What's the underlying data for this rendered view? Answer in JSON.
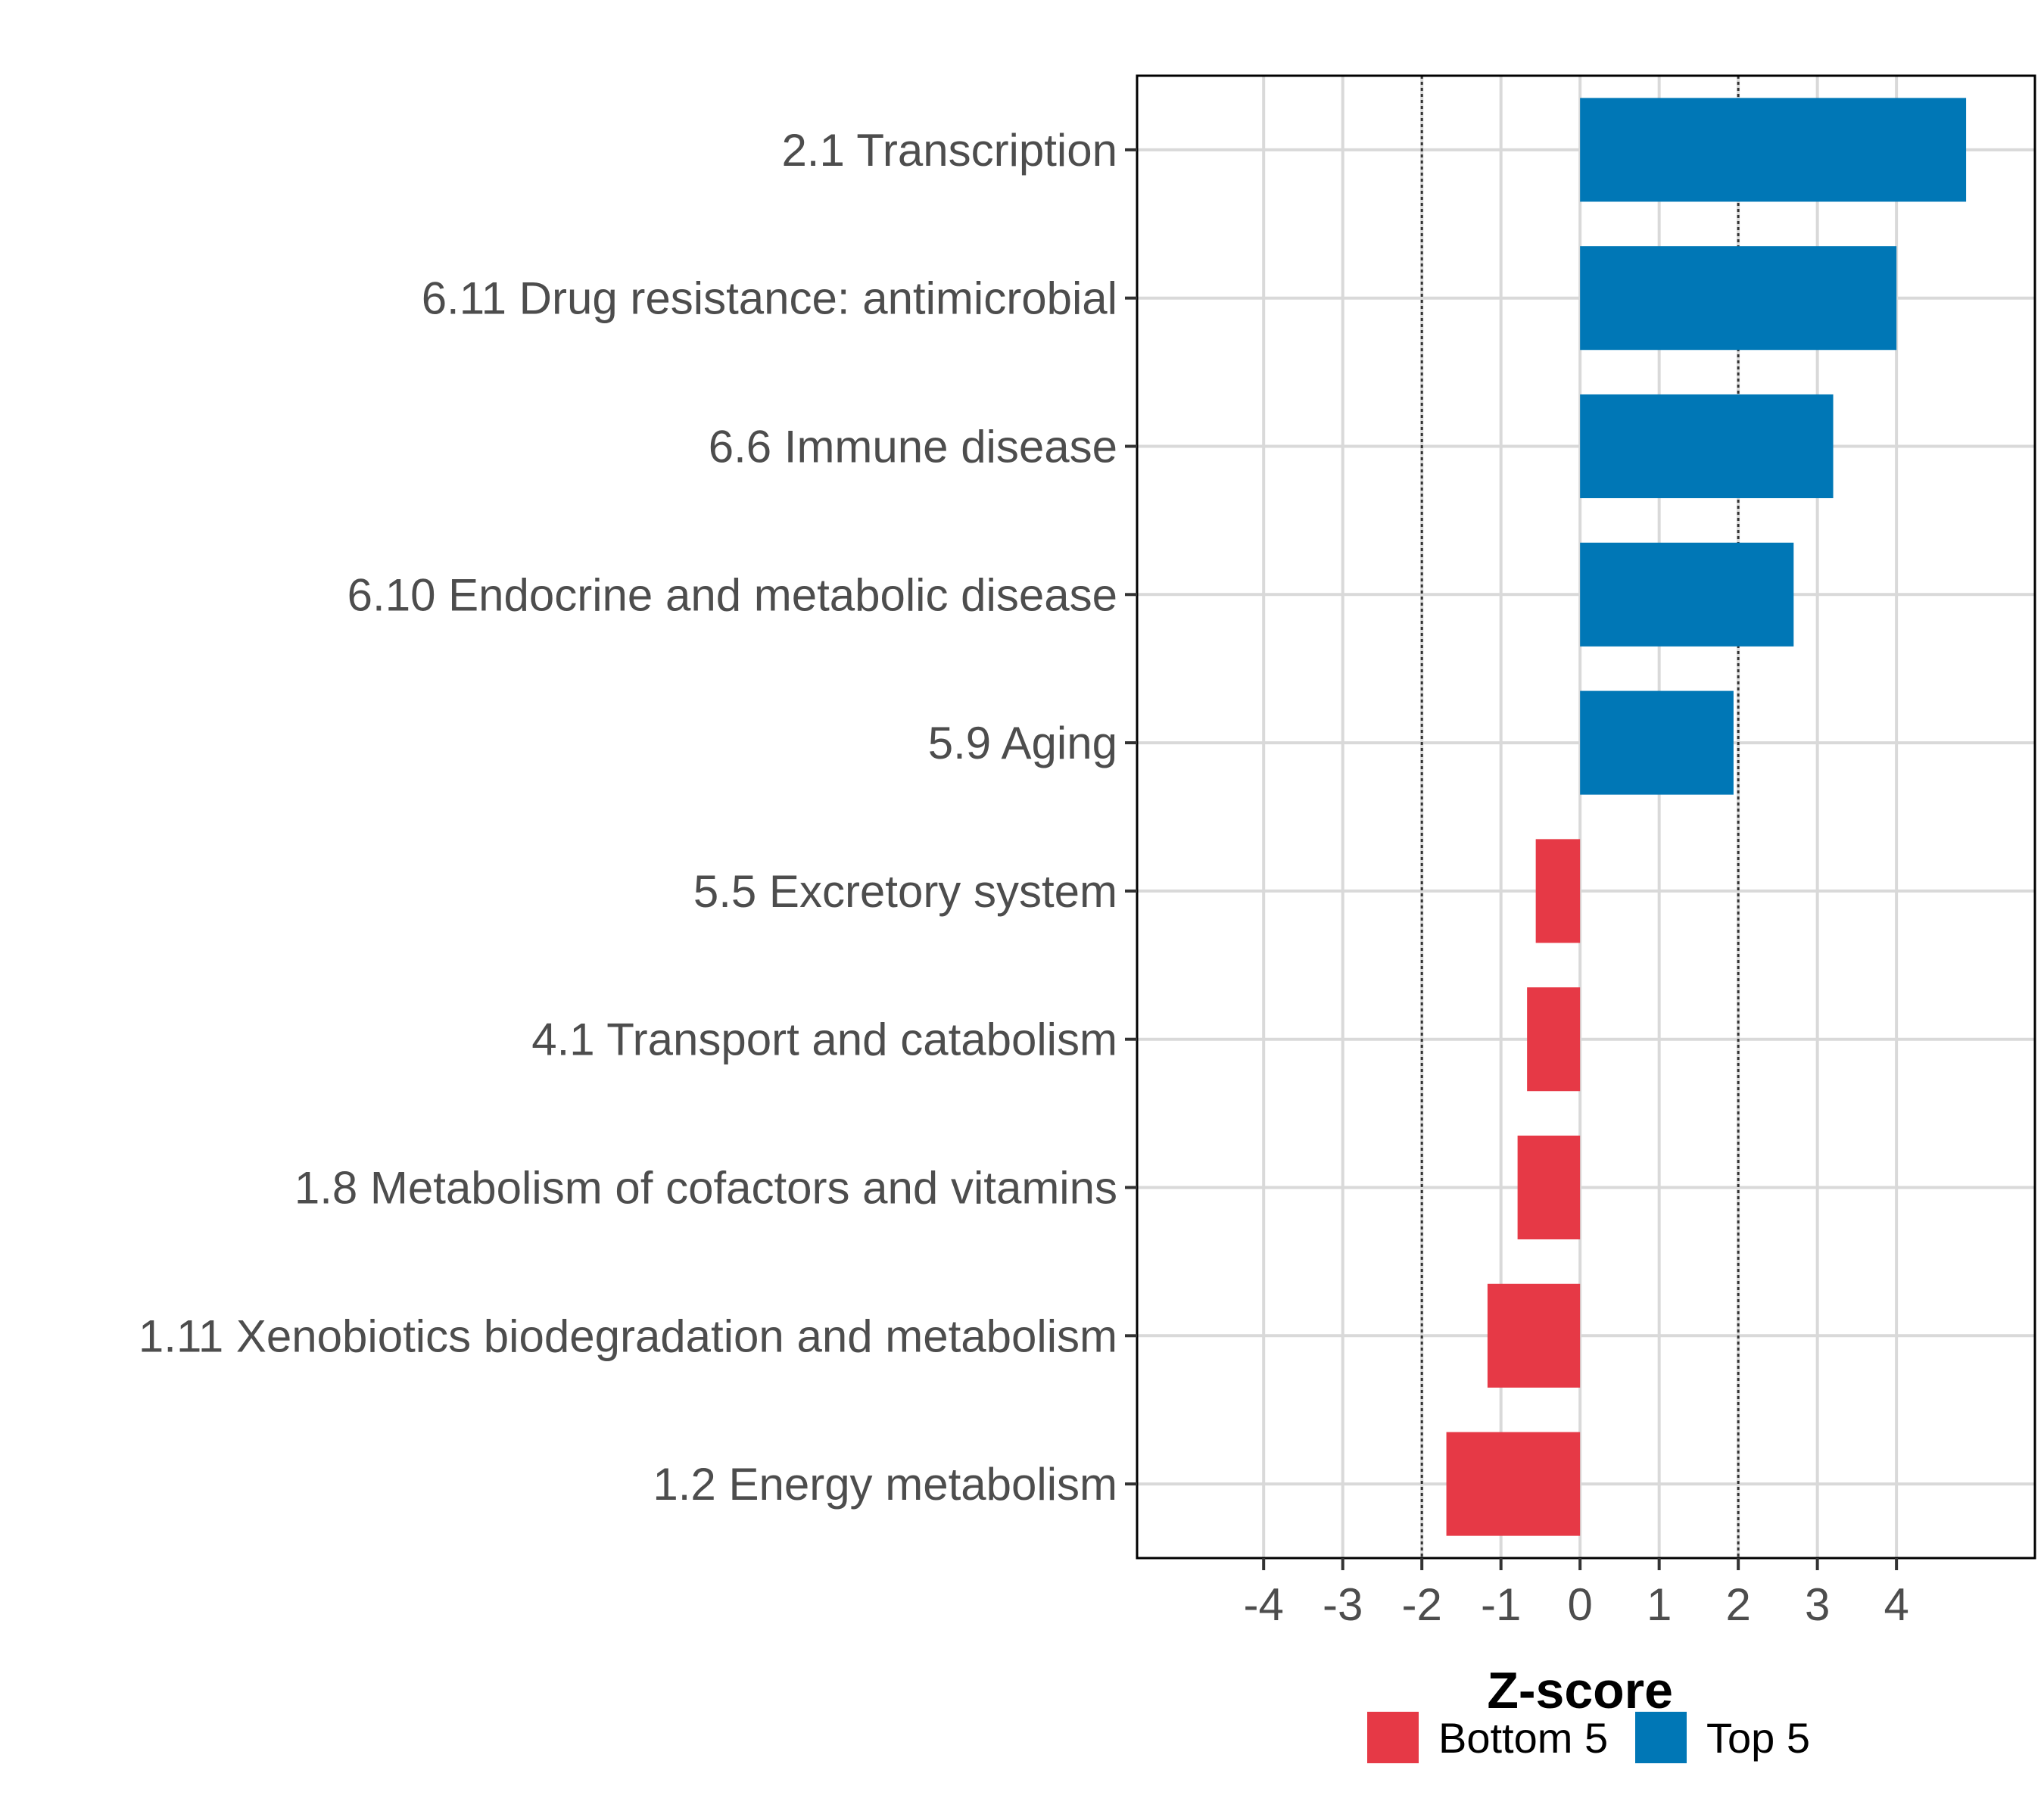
{
  "chart_data": {
    "type": "bar",
    "orientation": "horizontal",
    "title": "",
    "xlabel": "Z-score",
    "ylabel": "",
    "xlim": [
      -5.6,
      5.75
    ],
    "x_ticks": [
      -4,
      -3,
      -2,
      -1,
      0,
      1,
      2,
      3,
      4
    ],
    "x_tick_labels": [
      "-4",
      "-3",
      "-2",
      "-1",
      "0",
      "1",
      "2",
      "3",
      "4"
    ],
    "grid": true,
    "reference_lines": [
      -2,
      2
    ],
    "legend_position": "bottom",
    "categories": [
      "2.1 Transcription",
      "6.11 Drug resistance: antimicrobial",
      "6.6 Immune disease",
      "6.10 Endocrine and metabolic disease",
      "5.9 Aging",
      "5.5 Excretory system",
      "4.1 Transport and catabolism",
      "1.8 Metabolism of cofactors and vitamins",
      "1.11 Xenobiotics biodegradation and metabolism",
      "1.2 Energy metabolism"
    ],
    "values": [
      4.88,
      4.0,
      3.2,
      2.7,
      1.94,
      -0.56,
      -0.67,
      -0.79,
      -1.17,
      -1.69
    ],
    "groups": [
      "Top 5",
      "Top 5",
      "Top 5",
      "Top 5",
      "Top 5",
      "Bottom 5",
      "Bottom 5",
      "Bottom 5",
      "Bottom 5",
      "Bottom 5"
    ],
    "legend": [
      {
        "name": "Bottom 5",
        "color": "#E63946"
      },
      {
        "name": "Top 5",
        "color": "#0077B6"
      }
    ]
  }
}
